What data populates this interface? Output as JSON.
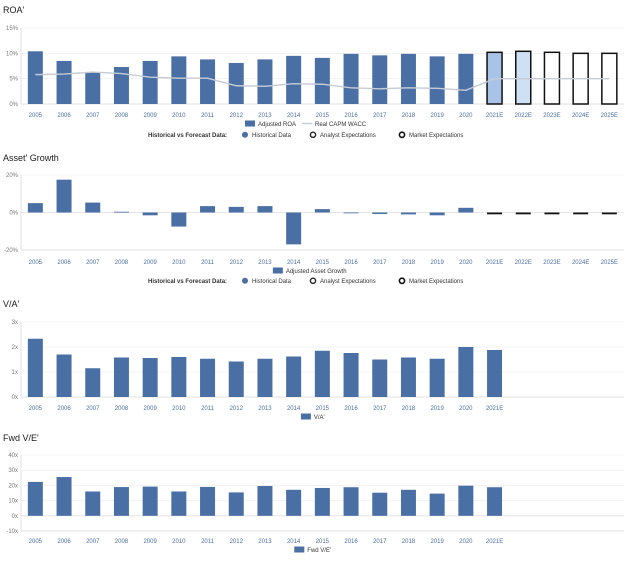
{
  "chart_data": [
    {
      "type": "bar",
      "title": "ROA'",
      "categories": [
        "2005",
        "2006",
        "2007",
        "2008",
        "2009",
        "2010",
        "2011",
        "2012",
        "2013",
        "2014",
        "2015",
        "2016",
        "2017",
        "2018",
        "2019",
        "2020",
        "2021E",
        "2022E",
        "2023E",
        "2024E",
        "2025E"
      ],
      "series": [
        {
          "name": "Adjusted ROA",
          "values": [
            10.4,
            8.5,
            6.3,
            7.3,
            8.5,
            9.4,
            8.8,
            8.1,
            8.8,
            9.5,
            9.1,
            9.9,
            9.6,
            9.9,
            9.4,
            9.9,
            10.2,
            10.4,
            10.2,
            10.0,
            10.0
          ]
        },
        {
          "name": "Real CAPM WACC",
          "values": [
            5.8,
            5.9,
            6.3,
            6.0,
            5.3,
            5.1,
            5.1,
            3.6,
            3.5,
            4.0,
            3.9,
            3.2,
            3.0,
            3.2,
            3.1,
            2.7,
            5.0,
            5.0,
            5.0,
            5.0,
            5.0
          ]
        }
      ],
      "yticks": [
        "15%",
        "10%",
        "5%",
        "0%"
      ],
      "ylim": [
        0,
        15
      ],
      "legend_series": [
        "Adjusted ROA",
        "Real CAPM WACC"
      ],
      "legend_forecast": [
        "Historical vs Forecast Data:",
        "Historical Data",
        "Analyst Expectations",
        "Market Expectations"
      ]
    },
    {
      "type": "bar",
      "title": "Asset' Growth",
      "categories": [
        "2005",
        "2006",
        "2007",
        "2008",
        "2009",
        "2010",
        "2011",
        "2012",
        "2013",
        "2014",
        "2015",
        "2016",
        "2017",
        "2018",
        "2019",
        "2020",
        "2021E",
        "2022E",
        "2023E",
        "2024E",
        "2025E"
      ],
      "series": [
        {
          "name": "Adjusted Asset Growth",
          "values": [
            5.0,
            17.5,
            5.3,
            0.4,
            -1.5,
            -7.5,
            3.4,
            3.0,
            3.4,
            -17.0,
            1.8,
            0.0,
            -0.8,
            -1.0,
            -1.5,
            2.5,
            0.0,
            -0.6,
            -0.6,
            -0.6,
            -0.6
          ]
        }
      ],
      "yticks": [
        "20%",
        "0%",
        "-20%"
      ],
      "ylim": [
        -20,
        20
      ],
      "legend_series": [
        "Adjusted Asset Growth"
      ],
      "legend_forecast": [
        "Historical vs Forecast Data:",
        "Historical Data",
        "Analyst Expectations",
        "Market Expectations"
      ]
    },
    {
      "type": "bar",
      "title": "V/A'",
      "categories": [
        "2005",
        "2006",
        "2007",
        "2008",
        "2009",
        "2010",
        "2011",
        "2012",
        "2013",
        "2014",
        "2015",
        "2016",
        "2017",
        "2018",
        "2019",
        "2020",
        "2021E"
      ],
      "series": [
        {
          "name": "V/A'",
          "values": [
            2.33,
            1.7,
            1.15,
            1.58,
            1.56,
            1.6,
            1.53,
            1.42,
            1.53,
            1.62,
            1.85,
            1.76,
            1.5,
            1.58,
            1.53,
            2.0,
            1.88
          ]
        }
      ],
      "yticks": [
        "3x",
        "2x",
        "1x",
        "0x"
      ],
      "ylim": [
        0,
        3
      ],
      "legend_series": [
        "V/A'"
      ]
    },
    {
      "type": "bar",
      "title": "Fwd V/E'",
      "categories": [
        "2005",
        "2006",
        "2007",
        "2008",
        "2009",
        "2010",
        "2011",
        "2012",
        "2013",
        "2014",
        "2015",
        "2016",
        "2017",
        "2018",
        "2019",
        "2020",
        "2021E"
      ],
      "series": [
        {
          "name": "Fwd V/E'",
          "values": [
            22.3,
            25.5,
            16.0,
            18.9,
            19.2,
            16.0,
            19.0,
            15.4,
            19.6,
            17.1,
            18.3,
            18.8,
            15.2,
            17.1,
            14.6,
            19.8,
            18.8
          ]
        }
      ],
      "yticks": [
        "40x",
        "30x",
        "20x",
        "10x",
        "0x",
        "-10x"
      ],
      "ylim": [
        -10,
        40
      ],
      "legend_series": [
        "Fwd V/E'"
      ]
    }
  ],
  "colors": {
    "bar": "#4a6fa5",
    "analyst_fill": "#a9c3e8",
    "analyst_light_fill": "#cfe0f5",
    "line": "#c5ccd6",
    "axis_text": "#4a6fa5",
    "title": "#1a1a1a",
    "grid": "#ececec"
  }
}
